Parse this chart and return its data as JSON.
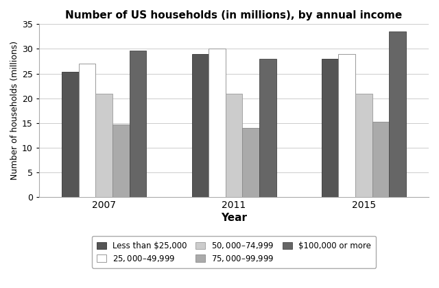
{
  "title": "Number of US households (in millions), by annual income",
  "xlabel": "Year",
  "ylabel": "Number of households (millions)",
  "years": [
    "2007",
    "2011",
    "2015"
  ],
  "categories": [
    "Less than $25,000",
    "$25,000–$49,999",
    "$50,000–$74,999",
    "$75,000–$99,999",
    "$100,000 or more"
  ],
  "values": {
    "Less than $25,000": [
      25.3,
      29.0,
      28.0
    ],
    "$25,000–$49,999": [
      27.0,
      30.0,
      29.0
    ],
    "$50,000–$74,999": [
      21.0,
      21.0,
      21.0
    ],
    "$75,000–$99,999": [
      14.7,
      14.0,
      15.2
    ],
    "$100,000 or more": [
      29.7,
      28.0,
      33.5
    ]
  },
  "colors": {
    "Less than $25,000": "#555555",
    "$25,000–$49,999": "#ffffff",
    "$50,000–$74,999": "#cccccc",
    "$75,000–$99,999": "#aaaaaa",
    "$100,000 or more": "#666666"
  },
  "edge_colors": {
    "Less than $25,000": "#333333",
    "$25,000–$49,999": "#888888",
    "$50,000–$74,999": "#999999",
    "$75,000–$99,999": "#888888",
    "$100,000 or more": "#444444"
  },
  "ylim": [
    0,
    35
  ],
  "yticks": [
    0,
    5,
    10,
    15,
    20,
    25,
    30,
    35
  ],
  "bar_width": 0.13,
  "group_centers": [
    0.0,
    1.0,
    2.0
  ]
}
